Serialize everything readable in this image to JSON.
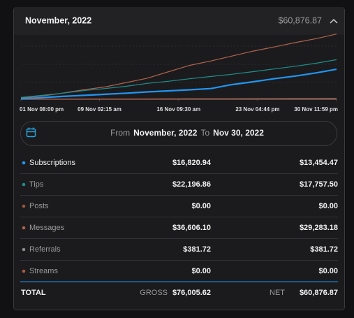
{
  "header": {
    "title": "November, 2022",
    "total": "$60,876.87"
  },
  "date_range": {
    "from_label": "From",
    "from": "November, 2022",
    "to_label": "To",
    "to": "Nov 30, 2022"
  },
  "totals": {
    "label": "TOTAL",
    "gross_label": "GROSS",
    "gross": "$76,005.62",
    "net_label": "NET",
    "net": "$60,876.87"
  },
  "chart_data": {
    "type": "line",
    "x": [
      1.83,
      3.8,
      5.7,
      7.7,
      9.6,
      11.6,
      13.5,
      15.5,
      17.4,
      19.4,
      21.3,
      23.3,
      25.2,
      27.2,
      29.1,
      31.0
    ],
    "xlim": [
      1.83,
      31.0
    ],
    "xticks": [
      {
        "value": 1.83,
        "label": "01 Nov 08:00 pm"
      },
      {
        "value": 9.09,
        "label": "09 Nov 02:15 am"
      },
      {
        "value": 16.4,
        "label": "16 Nov 09:30 am"
      },
      {
        "value": 23.7,
        "label": "23 Nov 04:44 pm"
      },
      {
        "value": 31.0,
        "label": "30 Nov 11:59 pm"
      }
    ],
    "ylim": [
      0,
      40000
    ],
    "series": [
      {
        "name": "Subscriptions",
        "color": "#2196f3",
        "gross": "$16,820.94",
        "net": "$13,454.47",
        "values": [
          300,
          900,
          1600,
          2200,
          2800,
          3400,
          4100,
          4700,
          5300,
          6000,
          8200,
          9800,
          11500,
          13000,
          14800,
          16820
        ]
      },
      {
        "name": "Tips",
        "color": "#1f8f8c",
        "gross": "$22,196.86",
        "net": "$17,757.50",
        "values": [
          1000,
          2200,
          3400,
          4900,
          6000,
          7300,
          8900,
          10100,
          11500,
          12800,
          14000,
          15500,
          17000,
          18500,
          20200,
          22196
        ]
      },
      {
        "name": "Posts",
        "color": "#9c5440",
        "gross": "$0.00",
        "net": "$0.00",
        "values": [
          0,
          0,
          0,
          0,
          0,
          0,
          0,
          0,
          0,
          0,
          0,
          0,
          0,
          0,
          0,
          0
        ]
      },
      {
        "name": "Messages",
        "color": "#b0634a",
        "gross": "$36,606.10",
        "net": "$29,283.18",
        "values": [
          700,
          1800,
          3500,
          5400,
          6900,
          9400,
          11800,
          15500,
          19000,
          21500,
          24200,
          27000,
          29300,
          31800,
          34000,
          36606
        ]
      },
      {
        "name": "Referrals",
        "color": "#8a8a8a",
        "gross": "$381.72",
        "net": "$381.72",
        "values": [
          0,
          20,
          50,
          80,
          100,
          130,
          160,
          190,
          220,
          250,
          280,
          300,
          320,
          340,
          360,
          381
        ]
      },
      {
        "name": "Streams",
        "color": "#a85a42",
        "gross": "$0.00",
        "net": "$0.00",
        "values": [
          0,
          0,
          0,
          0,
          0,
          0,
          0,
          0,
          0,
          0,
          0,
          0,
          0,
          0,
          0,
          0
        ]
      }
    ]
  }
}
